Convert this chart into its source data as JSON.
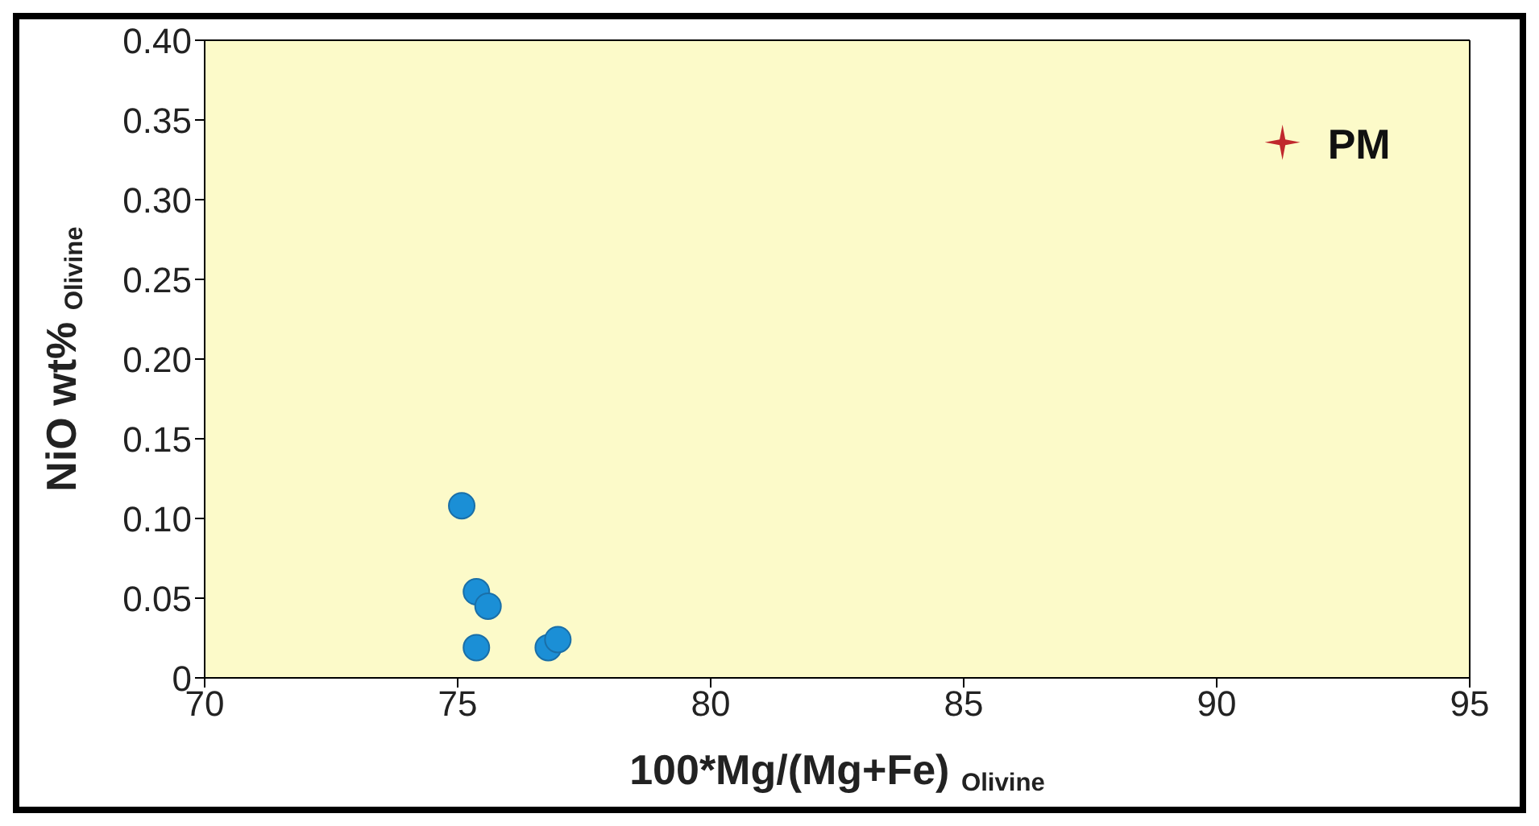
{
  "chart_data": {
    "type": "scatter",
    "xlabel": "100*Mg/(Mg+Fe) $_{Olivine}$",
    "ylabel": "NiO wt% $_{Olivine}$",
    "xlim": [
      70,
      95
    ],
    "xticks": [
      70,
      75,
      80,
      85,
      90,
      95
    ],
    "ylim": [
      0,
      0.4
    ],
    "yticks": [
      0,
      {
        "value": 0.05,
        "label": "0.05"
      },
      {
        "value": 0.1,
        "label": "0.10"
      },
      {
        "value": 0.15,
        "label": "0.15"
      },
      {
        "value": 0.2,
        "label": "0.20"
      },
      {
        "value": 0.25,
        "label": "0.25"
      },
      {
        "value": 0.3,
        "label": "0.30"
      },
      {
        "value": 0.35,
        "label": "0.35"
      },
      {
        "value": 0.4,
        "label": "0.40"
      }
    ],
    "grid": false,
    "legend": false,
    "series": [
      {
        "color": "#1b8fd6",
        "marker": "circle",
        "x": [
          75.08,
          75.37,
          75.6,
          75.37,
          76.79,
          76.98
        ],
        "values": [
          0.108,
          0.054,
          0.045,
          0.019,
          0.019,
          0.024
        ]
      },
      {
        "name": "PM",
        "color": "#c0282d",
        "marker": "star",
        "x": [
          91.3
        ],
        "values": [
          0.336
        ]
      }
    ]
  }
}
